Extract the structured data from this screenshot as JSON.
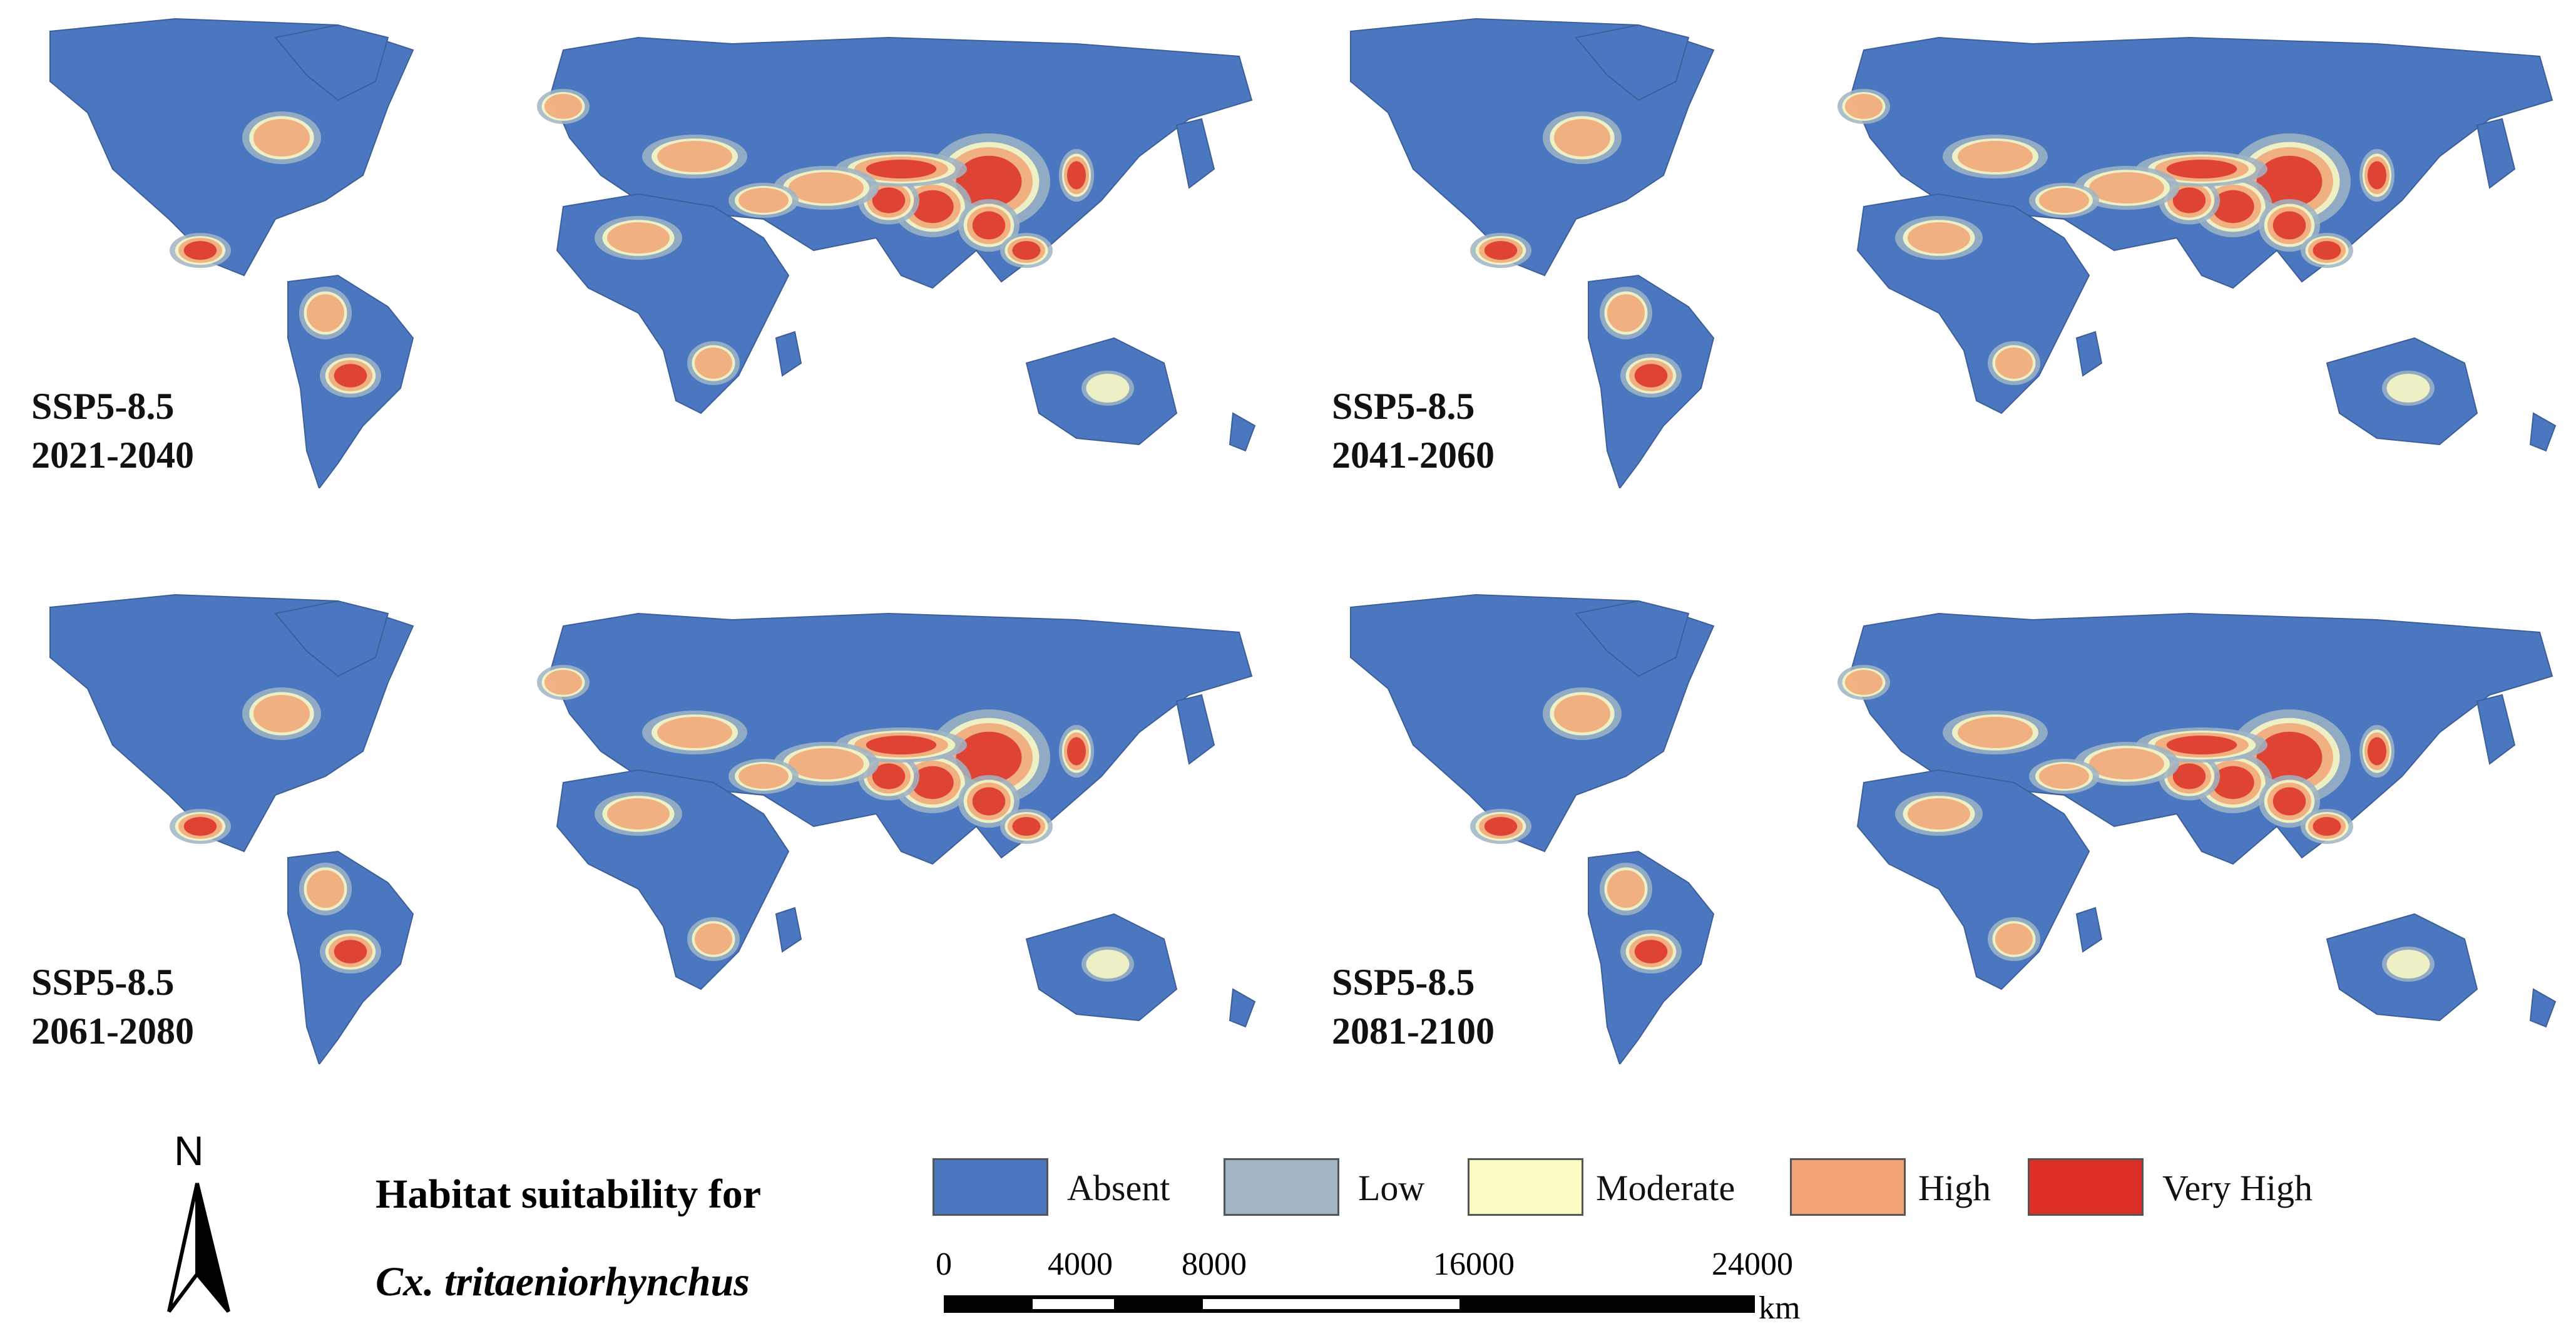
{
  "panels": [
    {
      "scenario": "SSP5-8.5",
      "period": "2021-2040"
    },
    {
      "scenario": "SSP5-8.5",
      "period": "2041-2060"
    },
    {
      "scenario": "SSP5-8.5",
      "period": "2061-2080"
    },
    {
      "scenario": "SSP5-8.5",
      "period": "2081-2100"
    }
  ],
  "north_arrow": {
    "label": "N"
  },
  "legend": {
    "title": "Habitat suitability for",
    "species": "Cx. tritaeniorhynchus",
    "classes": [
      {
        "label": "Absent",
        "color": "#4a77c0"
      },
      {
        "label": "Low",
        "color": "#9fb4c4"
      },
      {
        "label": "Moderate",
        "color": "#fbfbc4"
      },
      {
        "label": "High",
        "color": "#f2a475"
      },
      {
        "label": "Very High",
        "color": "#dc3027"
      }
    ]
  },
  "scale_bar": {
    "ticks": [
      "0",
      "4000",
      "8000",
      "16000",
      "24000"
    ],
    "values": [
      0,
      4000,
      8000,
      16000,
      24000
    ],
    "unit": "km"
  }
}
